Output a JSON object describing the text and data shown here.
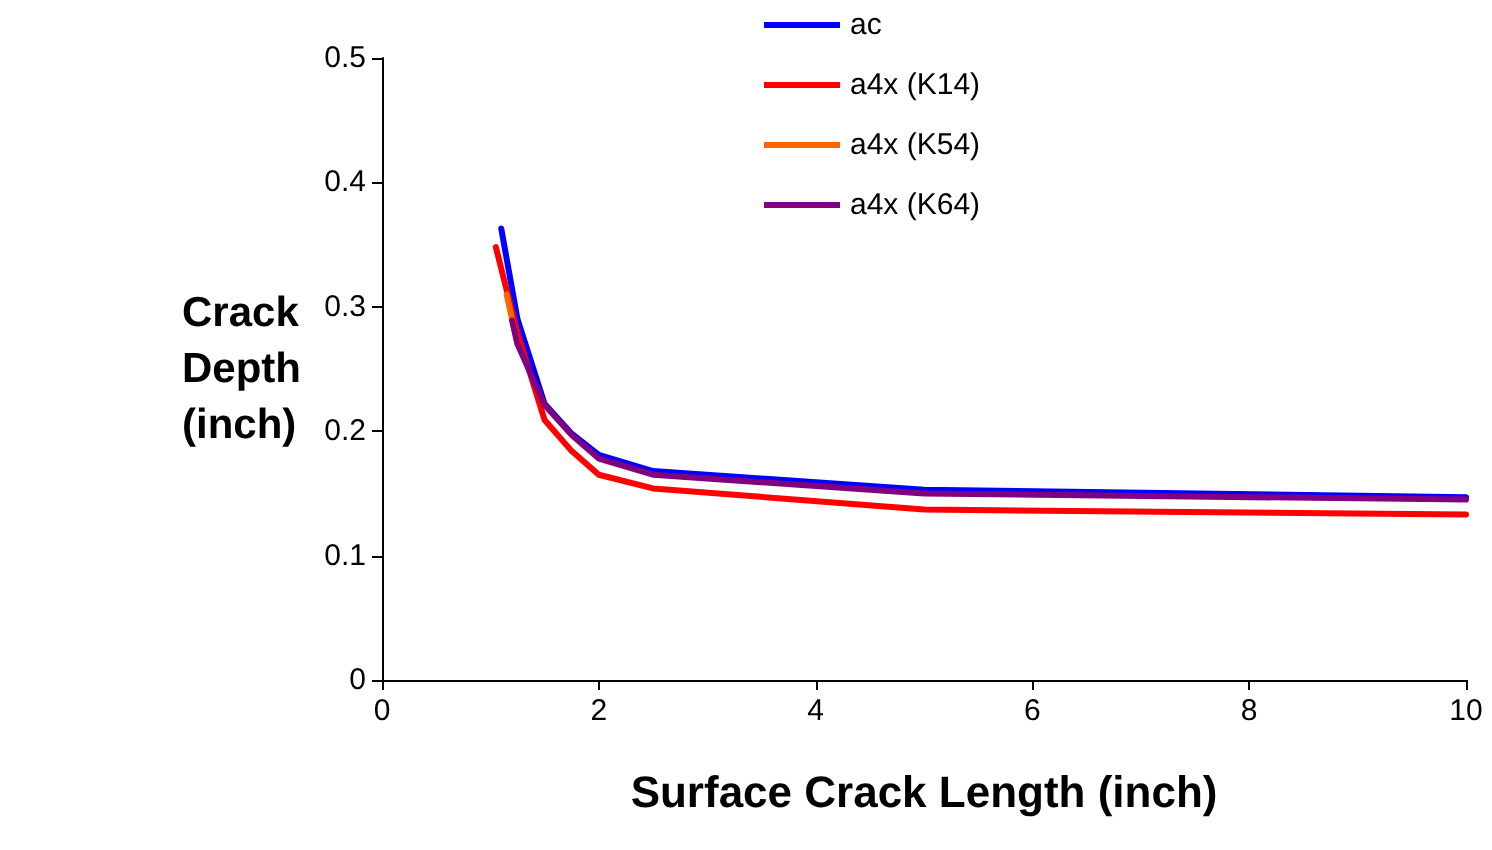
{
  "chart_data": {
    "type": "line",
    "xlabel": "Surface Crack Length (inch)",
    "ylabel": "Crack\nDepth\n(inch)",
    "xlim": [
      0,
      10
    ],
    "xticks": [
      0,
      2,
      4,
      6,
      8,
      10
    ],
    "ylim": [
      0,
      0.5
    ],
    "yticks": [
      0,
      0.1,
      0.2,
      0.3,
      0.4,
      0.5
    ],
    "grid": false,
    "legend": "top right",
    "marker": "none",
    "line_style": "solid",
    "series": [
      {
        "name": "ac",
        "color": "#0000ff",
        "x": [
          1.1,
          1.25,
          1.5,
          1.75,
          2,
          2.5,
          5,
          10
        ],
        "values": [
          0.363,
          0.29,
          0.222,
          0.198,
          0.181,
          0.168,
          0.153,
          0.147
        ]
      },
      {
        "name": "a4x (K14)",
        "color": "#ff0000",
        "x": [
          1.05,
          1.25,
          1.5,
          1.75,
          2,
          2.5,
          5,
          10
        ],
        "values": [
          0.348,
          0.279,
          0.209,
          0.184,
          0.165,
          0.154,
          0.137,
          0.133
        ]
      },
      {
        "name": "a4x (K54)",
        "color": "#ff6600",
        "x": [
          1.15,
          1.25
        ],
        "values": [
          0.31,
          0.27
        ]
      },
      {
        "name": "a4x (K64)",
        "color": "#800080",
        "x": [
          1.2,
          1.25,
          1.5,
          1.75,
          2,
          2.5,
          5,
          10
        ],
        "values": [
          0.289,
          0.27,
          0.221,
          0.197,
          0.178,
          0.165,
          0.15,
          0.145
        ]
      }
    ]
  }
}
